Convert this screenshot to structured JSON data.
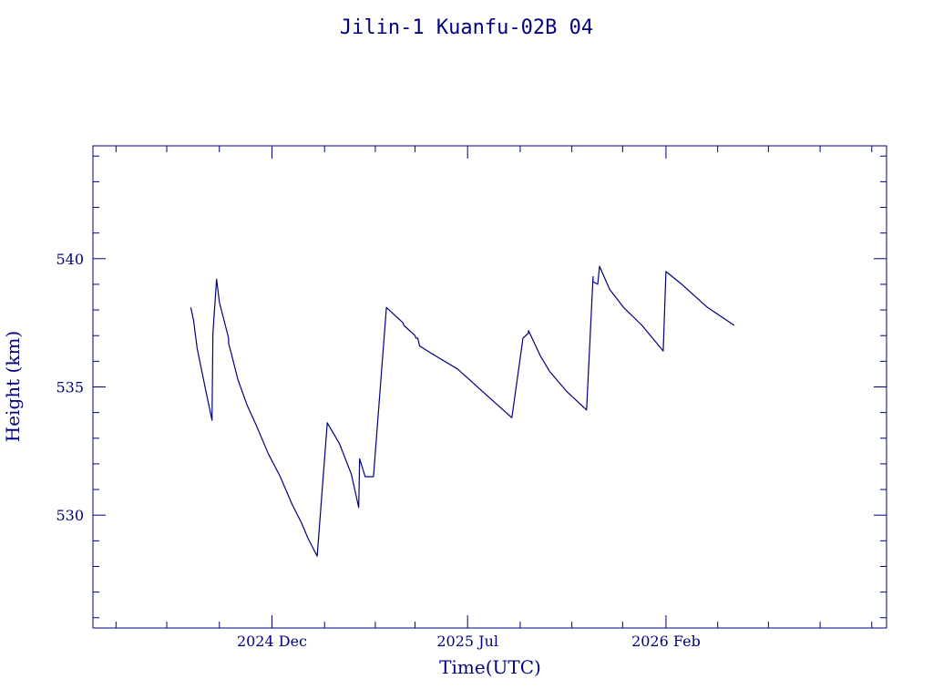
{
  "chart_data": {
    "type": "line",
    "title": "Jilin-1 Kuanfu-02B 04",
    "xlabel": "Time(UTC)",
    "ylabel": "Height (km)",
    "xlim": [
      "2024-05-21",
      "2026-09-28"
    ],
    "ylim": [
      525.6,
      544.4
    ],
    "x_ticks": [
      {
        "date": "2024-12-01",
        "label": "2024 Dec"
      },
      {
        "date": "2025-07-01",
        "label": "2025 Jul"
      },
      {
        "date": "2026-02-01",
        "label": "2026 Feb"
      }
    ],
    "x_minor_tick_dates": [
      "2024-06-15",
      "2024-08-09",
      "2024-10-05",
      "2025-01-27",
      "2025-03-23",
      "2025-05-05",
      "2025-08-27",
      "2025-10-22",
      "2025-12-16",
      "2026-03-29",
      "2026-05-23",
      "2026-07-18",
      "2026-09-12"
    ],
    "y_ticks": [
      530,
      535,
      540
    ],
    "y_minor_step": 1,
    "grid": false,
    "line_color": "#000080",
    "series": [
      {
        "x": [
          "2024-09-04",
          "2024-09-07",
          "2024-09-11",
          "2024-09-11",
          "2024-09-20",
          "2024-09-27",
          "2024-09-28",
          "2024-10-02",
          "2024-10-05",
          "2024-10-15",
          "2024-10-15",
          "2024-10-18",
          "2024-10-25",
          "2024-11-04",
          "2024-11-14",
          "2024-11-27",
          "2024-12-10",
          "2024-12-23",
          "2025-01-02",
          "2025-01-09",
          "2025-01-19",
          "2025-01-30",
          "2025-02-12",
          "2025-02-25",
          "2025-03-05",
          "2025-03-06",
          "2025-03-12",
          "2025-03-21",
          "2025-04-04",
          "2025-04-22",
          "2025-04-23",
          "2025-05-05",
          "2025-05-06",
          "2025-05-08",
          "2025-05-10",
          "2025-05-23",
          "2025-06-20",
          "2025-07-21",
          "2025-08-18",
          "2025-08-30",
          "2025-09-05",
          "2025-09-05",
          "2025-09-18",
          "2025-09-28",
          "2025-10-17",
          "2025-11-07",
          "2025-11-14",
          "2025-11-14",
          "2025-11-19",
          "2025-11-21",
          "2025-12-02",
          "2025-12-17",
          "2026-01-06",
          "2026-01-29",
          "2026-02-01",
          "2026-02-18",
          "2026-03-18",
          "2026-04-16"
        ],
        "y": [
          538.1,
          537.6,
          536.5,
          536.5,
          534.9,
          533.7,
          537.1,
          539.2,
          538.3,
          536.9,
          536.7,
          536.3,
          535.3,
          534.3,
          533.5,
          532.4,
          531.5,
          530.4,
          529.7,
          529.1,
          528.4,
          533.6,
          532.8,
          531.6,
          530.3,
          532.2,
          531.5,
          531.5,
          538.1,
          537.5,
          537.4,
          537.0,
          536.9,
          536.9,
          536.6,
          536.3,
          535.7,
          534.7,
          533.8,
          536.9,
          537.1,
          537.2,
          536.2,
          535.6,
          534.8,
          534.1,
          539.3,
          539.1,
          539.0,
          539.7,
          538.8,
          538.1,
          537.4,
          536.4,
          539.5,
          539.0,
          538.1,
          537.4
        ]
      }
    ]
  }
}
